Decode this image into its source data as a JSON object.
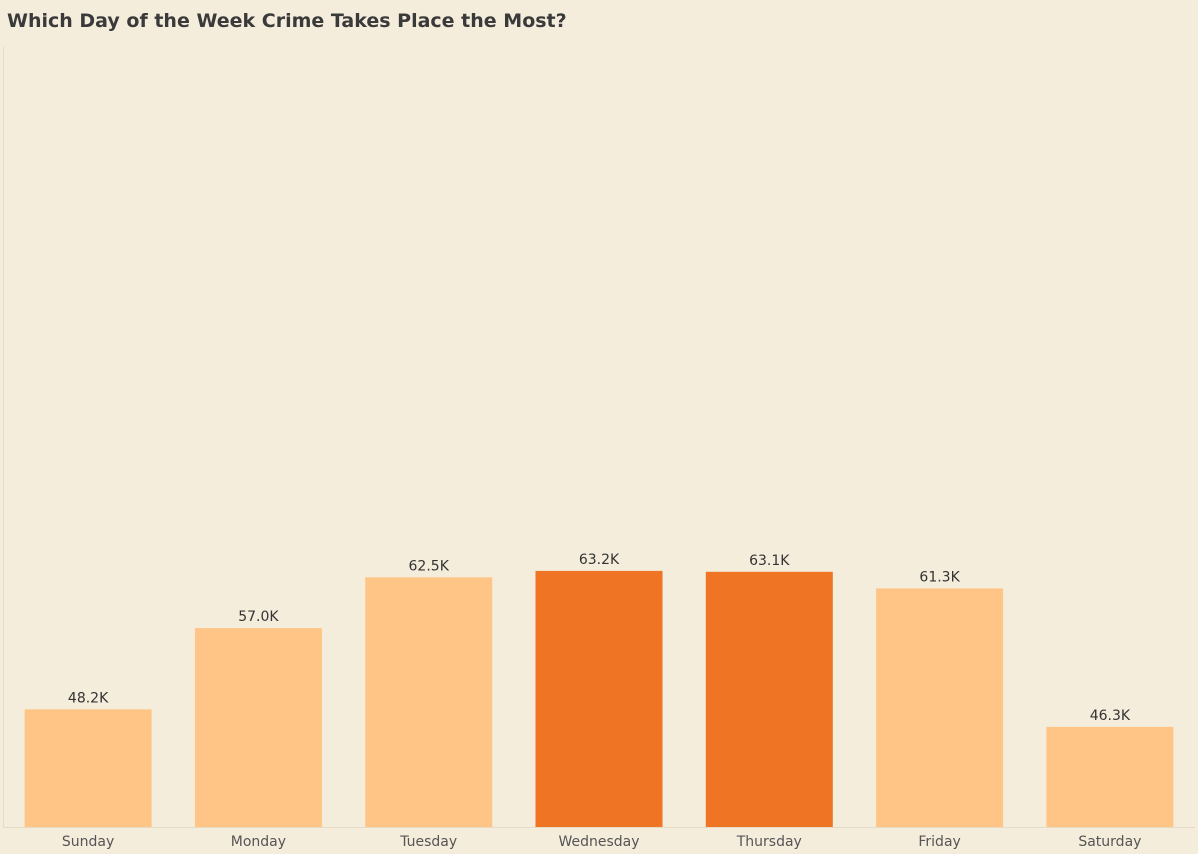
{
  "chart_data": {
    "type": "bar",
    "title": "Which Day of the Week Crime Takes Place the Most?",
    "categories": [
      "Sunday",
      "Monday",
      "Tuesday",
      "Wednesday",
      "Thursday",
      "Friday",
      "Saturday"
    ],
    "values": [
      48200,
      57000,
      62500,
      63200,
      63100,
      61300,
      46300
    ],
    "value_labels": [
      "48.2K",
      "57.0K",
      "62.5K",
      "63.2K",
      "63.1K",
      "61.3K",
      "46.3K"
    ],
    "highlighted": [
      false,
      false,
      false,
      true,
      true,
      false,
      false
    ],
    "ylim": [
      40000,
      70000
    ],
    "grid": false,
    "legend": "none",
    "colors": {
      "normal": "#FFC586",
      "highlight": "#EF7424",
      "background": "#F5EDDC"
    }
  }
}
